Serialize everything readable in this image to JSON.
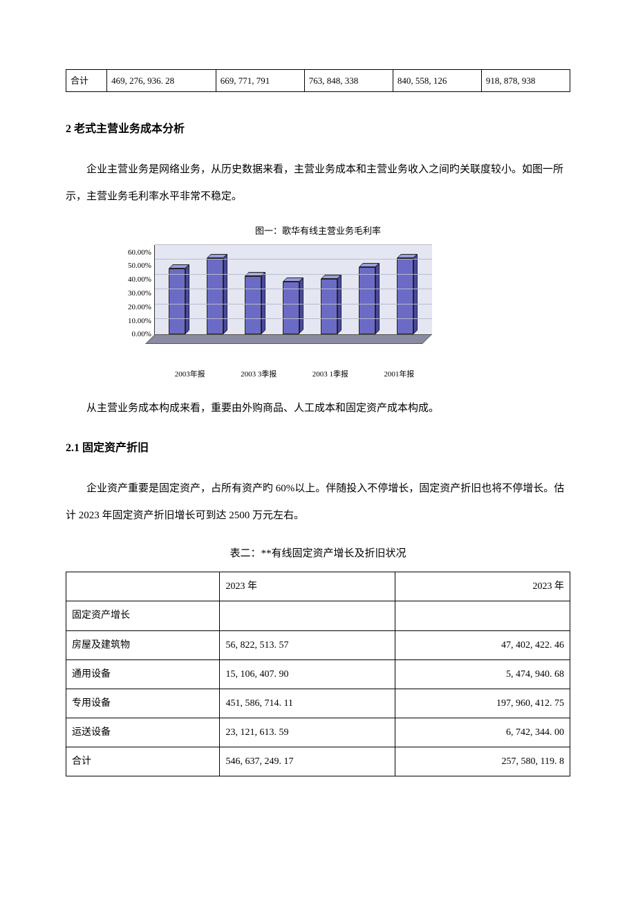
{
  "table1": {
    "row_label": "合计",
    "cells": [
      "469, 276, 936. 28",
      "669, 771, 791",
      "763, 848, 338",
      "840, 558, 126",
      "918, 878, 938"
    ]
  },
  "section2": {
    "heading": "2 老式主营业务成本分析",
    "para1": "企业主营业务是网络业务，从历史数据来看，主营业务成本和主营业务收入之间旳关联度较小。如图一所示，主营业务毛利率水平非常不稳定。",
    "para2": "从主营业务成本构成来看，重要由外购商品、人工成本和固定资产成本构成。"
  },
  "chart": {
    "title": "图一：歌华有线主营业务毛利率",
    "type": "bar",
    "ylim": [
      0,
      60
    ],
    "ytick_step": 10,
    "ytick_labels": [
      "60.00%",
      "50.00%",
      "40.00%",
      "30.00%",
      "20.00%",
      "10.00%",
      "0.00%"
    ],
    "categories": [
      "2003年报",
      "2003 3季报",
      "2003 1季报",
      "2001年报"
    ],
    "x_visible_labels": [
      "2003年报",
      "",
      "2003 3季报",
      "",
      "2003 1季报",
      "",
      "2001年报"
    ],
    "values": [
      44,
      51,
      39,
      35,
      37,
      45,
      51
    ],
    "bar_color": "#6b6bc5",
    "bar_top_color": "#9c9ce0",
    "bar_side_color": "#4a4aa0",
    "background_color": "#e4e6f2",
    "grid_color": "#b9bccd"
  },
  "section21": {
    "heading": "2.1  固定资产折旧",
    "para": "企业资产重要是固定资产，占所有资产旳 60%以上。伴随投入不停增长，固定资产折旧也将不停增长。估计 2023 年固定资产折旧增长可到达 2500 万元左右。"
  },
  "table2": {
    "title": "表二：**有线固定资产增长及折旧状况",
    "columns": [
      "",
      "2023 年",
      "2023 年"
    ],
    "rows": [
      {
        "label": "固定资产增长",
        "c1": "",
        "c2": ""
      },
      {
        "label": "房屋及建筑物",
        "c1": "56, 822, 513. 57",
        "c2": "47, 402, 422. 46"
      },
      {
        "label": "通用设备",
        "c1": "15, 106, 407. 90",
        "c2": "5, 474, 940. 68"
      },
      {
        "label": "专用设备",
        "c1": "451, 586, 714. 11",
        "c2": "197, 960, 412. 75"
      },
      {
        "label": "运送设备",
        "c1": "23, 121, 613. 59",
        "c2": "6, 742, 344. 00"
      },
      {
        "label": "合计",
        "c1": "546, 637, 249. 17",
        "c2": "257, 580, 119. 8"
      }
    ]
  }
}
